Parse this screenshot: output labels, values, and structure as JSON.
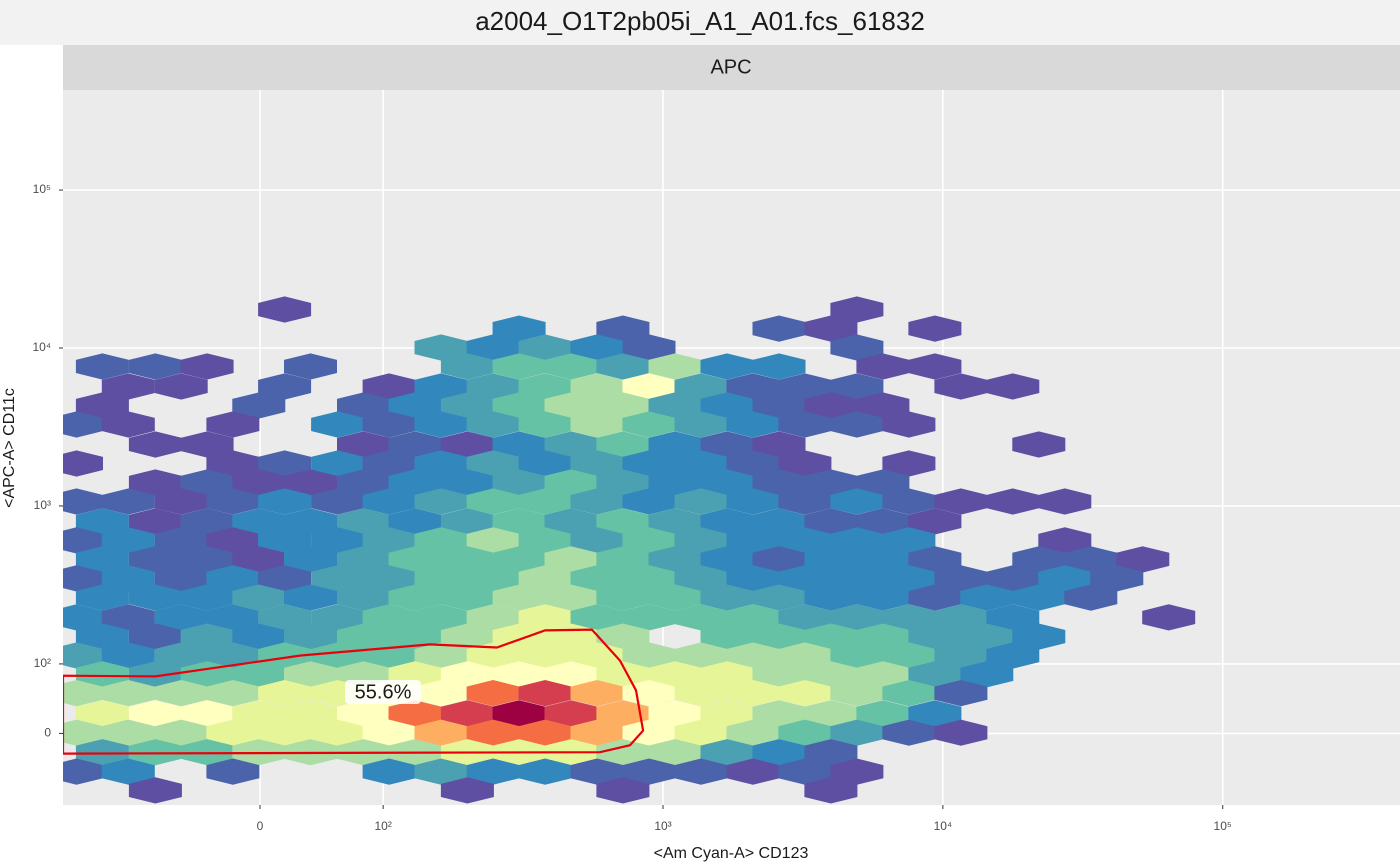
{
  "chart_data": {
    "type": "hexbin",
    "title": "a2004_O1T2pb05i_A1_A01.fcs_61832",
    "facet": "APC",
    "x_label": "<Am Cyan-A> CD123",
    "y_label": "<APC-A> CD11c",
    "xlim": [
      -160,
      430000
    ],
    "ylim": [
      -103,
      430000
    ],
    "xticks": [
      0,
      {
        "value": 100,
        "label": "10²"
      },
      {
        "value": 1000,
        "label": "10³"
      },
      {
        "value": 10000,
        "label": "10⁴"
      },
      {
        "value": 100000,
        "label": "10⁵"
      }
    ],
    "yticks": [
      0,
      {
        "value": 100,
        "label": "10²"
      },
      {
        "value": 1000,
        "label": "10³"
      },
      {
        "value": 10000,
        "label": "10⁴"
      },
      {
        "value": 100000,
        "label": "10⁵"
      }
    ],
    "grid": true,
    "colors": [
      "#5e4fa2",
      "#4a63ab",
      "#3288bd",
      "#4ba1b1",
      "#66c2a5",
      "#abdda4",
      "#e6f598",
      "#ffffbf",
      "#fdae61",
      "#f46d43",
      "#d53e4f",
      "#9e0142"
    ],
    "rows": [
      {
        "y": 17520,
        "x": [
          20,
          4931
        ],
        "counts": [
          1,
          1
        ]
      },
      {
        "y": 13280,
        "x": [
          306,
          719,
          2596,
          3981,
          9364
        ],
        "counts": [
          3,
          2,
          2,
          1,
          1
        ]
      },
      {
        "y": 10070,
        "x": [
          161,
          247,
          379,
          581,
          891,
          4931
        ],
        "counts": [
          4,
          3,
          4,
          3,
          2,
          2
        ]
      },
      {
        "y": 7638,
        "x": [
          -128,
          -85,
          -43,
          41,
          200,
          306,
          469,
          719,
          1104,
          1693,
          2596,
          6106,
          9364
        ],
        "counts": [
          2,
          2,
          1,
          2,
          4,
          5,
          5,
          4,
          6,
          3,
          3,
          1,
          1
        ]
      },
      {
        "y": 5709,
        "x": [
          -107,
          -64,
          20,
          105,
          161,
          247,
          379,
          581,
          891,
          1367,
          2096,
          3215,
          4931,
          11600,
          17780
        ],
        "counts": [
          1,
          1,
          2,
          1,
          3,
          4,
          5,
          6,
          8,
          4,
          2,
          2,
          2,
          1,
          1
        ]
      },
      {
        "y": 4328,
        "x": [
          -128,
          -1,
          84,
          130,
          200,
          306,
          469,
          719,
          1104,
          1693,
          2596,
          3981,
          6106
        ],
        "counts": [
          1,
          2,
          2,
          3,
          4,
          5,
          6,
          6,
          4,
          3,
          2,
          1,
          1
        ]
      },
      {
        "y": 3281,
        "x": [
          -149,
          -107,
          -22,
          63,
          105,
          161,
          247,
          379,
          581,
          891,
          1367,
          2096,
          3215,
          4931,
          7562
        ],
        "counts": [
          2,
          1,
          1,
          3,
          2,
          3,
          4,
          5,
          6,
          5,
          4,
          3,
          2,
          2,
          1
        ]
      },
      {
        "y": 2451,
        "x": [
          -85,
          -43,
          84,
          130,
          200,
          306,
          469,
          719,
          1104,
          1693,
          2596,
          22020
        ],
        "counts": [
          1,
          1,
          1,
          2,
          1,
          3,
          4,
          5,
          3,
          2,
          1,
          1
        ]
      },
      {
        "y": 1858,
        "x": [
          -149,
          -22,
          20,
          63,
          105,
          161,
          247,
          379,
          581,
          891,
          1367,
          2096,
          3215,
          7562
        ],
        "counts": [
          1,
          1,
          2,
          3,
          2,
          3,
          4,
          3,
          4,
          3,
          3,
          2,
          1,
          1
        ]
      },
      {
        "y": 1408,
        "x": [
          -85,
          -43,
          -1,
          41,
          84,
          130,
          200,
          306,
          469,
          719,
          1104,
          1693,
          2596,
          3981,
          6106
        ],
        "counts": [
          1,
          2,
          1,
          1,
          2,
          3,
          3,
          4,
          5,
          4,
          3,
          3,
          2,
          2,
          2
        ]
      },
      {
        "y": 1067,
        "x": [
          -149,
          -107,
          -64,
          -22,
          20,
          63,
          105,
          161,
          247,
          379,
          581,
          891,
          1367,
          2096,
          3215,
          4931,
          7562,
          11600,
          17780,
          27270
        ],
        "counts": [
          2,
          2,
          1,
          2,
          3,
          2,
          3,
          4,
          5,
          5,
          4,
          3,
          4,
          3,
          2,
          3,
          2,
          1,
          1,
          1
        ]
      },
      {
        "y": 798,
        "x": [
          -128,
          -85,
          -43,
          -1,
          41,
          84,
          130,
          200,
          306,
          469,
          719,
          1104,
          1693,
          2596,
          3981,
          6106,
          9364
        ],
        "counts": [
          3,
          1,
          2,
          3,
          3,
          4,
          3,
          4,
          5,
          4,
          5,
          4,
          3,
          3,
          2,
          2,
          1
        ]
      },
      {
        "y": 605,
        "x": [
          -149,
          -107,
          -64,
          -22,
          20,
          63,
          105,
          161,
          247,
          379,
          581,
          891,
          1367,
          2096,
          3215,
          4931,
          7562,
          27270
        ],
        "counts": [
          2,
          3,
          2,
          1,
          3,
          3,
          4,
          5,
          6,
          5,
          4,
          5,
          4,
          3,
          3,
          3,
          3,
          1
        ]
      },
      {
        "y": 459,
        "x": [
          -128,
          -85,
          -43,
          -1,
          41,
          84,
          130,
          200,
          306,
          469,
          719,
          1104,
          1693,
          2596,
          3981,
          6106,
          9364,
          22020,
          33770,
          51790
        ],
        "counts": [
          3,
          2,
          2,
          1,
          3,
          4,
          5,
          5,
          5,
          6,
          5,
          4,
          3,
          2,
          3,
          3,
          2,
          2,
          2,
          1
        ]
      },
      {
        "y": 348,
        "x": [
          -149,
          -107,
          -64,
          -22,
          20,
          63,
          105,
          161,
          247,
          379,
          581,
          891,
          1367,
          2096,
          3215,
          4931,
          7562,
          11600,
          17780,
          27270,
          41820
        ],
        "counts": [
          2,
          3,
          2,
          3,
          2,
          4,
          4,
          5,
          5,
          6,
          5,
          5,
          4,
          3,
          3,
          3,
          3,
          2,
          2,
          3,
          2
        ]
      },
      {
        "y": 263,
        "x": [
          -128,
          -85,
          -43,
          -1,
          41,
          84,
          130,
          200,
          306,
          469,
          719,
          1104,
          1693,
          2596,
          3981,
          6106,
          9364,
          14360,
          22020,
          33770
        ],
        "counts": [
          3,
          3,
          3,
          4,
          3,
          4,
          5,
          5,
          6,
          6,
          5,
          5,
          4,
          4,
          3,
          3,
          2,
          3,
          3,
          2
        ]
      },
      {
        "y": 197,
        "x": [
          -149,
          -107,
          -64,
          -22,
          20,
          63,
          105,
          161,
          247,
          379,
          581,
          891,
          1367,
          2096,
          3215,
          4931,
          7562,
          11600,
          17780,
          64140
        ],
        "counts": [
          3,
          2,
          3,
          3,
          4,
          4,
          5,
          5,
          6,
          7,
          5,
          5,
          5,
          5,
          4,
          4,
          4,
          4,
          3,
          1
        ]
      },
      {
        "y": 149,
        "x": [
          -128,
          -85,
          -43,
          -1,
          41,
          84,
          130,
          200,
          306,
          469,
          719,
          1693,
          2596,
          3981,
          6106,
          9364,
          14360,
          22020
        ],
        "counts": [
          3,
          2,
          4,
          3,
          4,
          5,
          5,
          6,
          7,
          7,
          6,
          5,
          5,
          5,
          5,
          4,
          4,
          3
        ]
      },
      {
        "y": 113,
        "x": [
          -149,
          -107,
          -64,
          -22,
          20,
          63,
          105,
          161,
          247,
          379,
          581,
          891,
          1367,
          2096,
          3215,
          4931,
          7562,
          11600,
          17780
        ],
        "counts": [
          4,
          3,
          4,
          4,
          5,
          5,
          5,
          6,
          7,
          7,
          7,
          6,
          6,
          6,
          6,
          5,
          5,
          4,
          3
        ]
      },
      {
        "y": 85,
        "x": [
          -128,
          -85,
          -43,
          -1,
          41,
          84,
          130,
          200,
          306,
          469,
          719,
          1104,
          1693,
          2596,
          3981,
          6106,
          9364,
          14360
        ],
        "counts": [
          5,
          4,
          5,
          5,
          6,
          6,
          7,
          8,
          8,
          8,
          7,
          7,
          7,
          6,
          6,
          6,
          4,
          3
        ]
      },
      {
        "y": 58,
        "x": [
          -149,
          -107,
          -64,
          -22,
          20,
          63,
          105,
          161,
          247,
          379,
          581,
          891,
          1367,
          2096,
          3215,
          4931,
          7562,
          11600
        ],
        "counts": [
          6,
          6,
          6,
          6,
          7,
          7,
          8,
          8,
          10,
          11,
          9,
          8,
          7,
          7,
          7,
          6,
          5,
          2
        ]
      },
      {
        "y": 29,
        "x": [
          -128,
          -85,
          -43,
          -1,
          41,
          84,
          130,
          200,
          306,
          469,
          719,
          1104,
          1693,
          2596,
          3981,
          6106,
          9364
        ],
        "counts": [
          7,
          8,
          8,
          7,
          7,
          8,
          10,
          11,
          12,
          11,
          9,
          8,
          7,
          6,
          6,
          5,
          3
        ]
      },
      {
        "y": 1,
        "x": [
          -149,
          -107,
          -64,
          -22,
          20,
          63,
          105,
          161,
          247,
          379,
          581,
          891,
          1367,
          2096,
          3215,
          4931,
          7562,
          11600
        ],
        "counts": [
          6,
          6,
          6,
          7,
          7,
          7,
          8,
          9,
          10,
          10,
          9,
          8,
          7,
          6,
          5,
          4,
          2,
          1
        ]
      },
      {
        "y": -27,
        "x": [
          -128,
          -85,
          -43,
          -1,
          41,
          84,
          130,
          200,
          306,
          469,
          719,
          1104,
          1693,
          2596,
          3981
        ],
        "counts": [
          4,
          5,
          5,
          6,
          6,
          6,
          6,
          7,
          7,
          7,
          6,
          6,
          4,
          3,
          2
        ]
      },
      {
        "y": -55,
        "x": [
          -149,
          -107,
          -22,
          105,
          161,
          247,
          379,
          581,
          891,
          1367,
          2096,
          3215,
          4931
        ],
        "counts": [
          2,
          3,
          2,
          3,
          4,
          3,
          3,
          2,
          2,
          2,
          1,
          2,
          1
        ]
      },
      {
        "y": -82,
        "x": [
          -85,
          200,
          719,
          3981
        ],
        "counts": [
          1,
          1,
          1,
          1
        ]
      }
    ],
    "gate": {
      "x": [
        -160,
        -85,
        33,
        147,
        255,
        379,
        557,
        702,
        801,
        849,
        762,
        596,
        -160
      ],
      "y": [
        83,
        82,
        113,
        133,
        127,
        163,
        165,
        105,
        62,
        4,
        -17,
        -27,
        -29
      ],
      "label": "55.6%",
      "color": "#e8000b"
    }
  }
}
